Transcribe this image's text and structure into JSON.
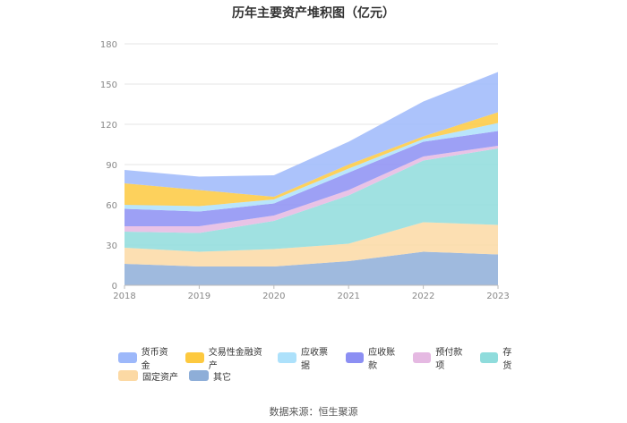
{
  "source_note": "数据来源：恒生聚源",
  "chart_data": {
    "type": "area",
    "stacked": true,
    "title": "历年主要资产堆积图（亿元）",
    "xlabel": "",
    "ylabel": "",
    "categories": [
      "2018",
      "2019",
      "2020",
      "2021",
      "2022",
      "2023"
    ],
    "ylim": [
      0,
      180
    ],
    "yticks": [
      0,
      30,
      60,
      90,
      120,
      150,
      180
    ],
    "grid": true,
    "legend_position": "bottom",
    "series": [
      {
        "name": "其它",
        "color": "#8eaed8",
        "values": [
          16,
          14,
          14,
          18,
          25,
          23
        ]
      },
      {
        "name": "固定资产",
        "color": "#fcd9a4",
        "values": [
          12,
          11,
          13,
          13,
          22,
          22
        ]
      },
      {
        "name": "存货",
        "color": "#8fdcdc",
        "values": [
          12,
          14,
          21,
          36,
          46,
          57
        ]
      },
      {
        "name": "预付款项",
        "color": "#e5b9e2",
        "values": [
          4,
          5,
          4,
          4,
          3,
          2
        ]
      },
      {
        "name": "应收账款",
        "color": "#8c8ff3",
        "values": [
          13,
          11,
          9,
          13,
          11,
          11
        ]
      },
      {
        "name": "应收票据",
        "color": "#ade1fb",
        "values": [
          3,
          4,
          3,
          3,
          2,
          6
        ]
      },
      {
        "name": "交易性金融资产",
        "color": "#fdc93f",
        "values": [
          16,
          12,
          2,
          3,
          2,
          8
        ]
      },
      {
        "name": "货币资金",
        "color": "#9db8fa",
        "values": [
          10,
          10,
          16,
          17,
          26,
          30
        ]
      }
    ],
    "legend_order": [
      "货币资金",
      "交易性金融资产",
      "应收票据",
      "应收账款",
      "预付款项",
      "存货",
      "固定资产",
      "其它"
    ]
  }
}
